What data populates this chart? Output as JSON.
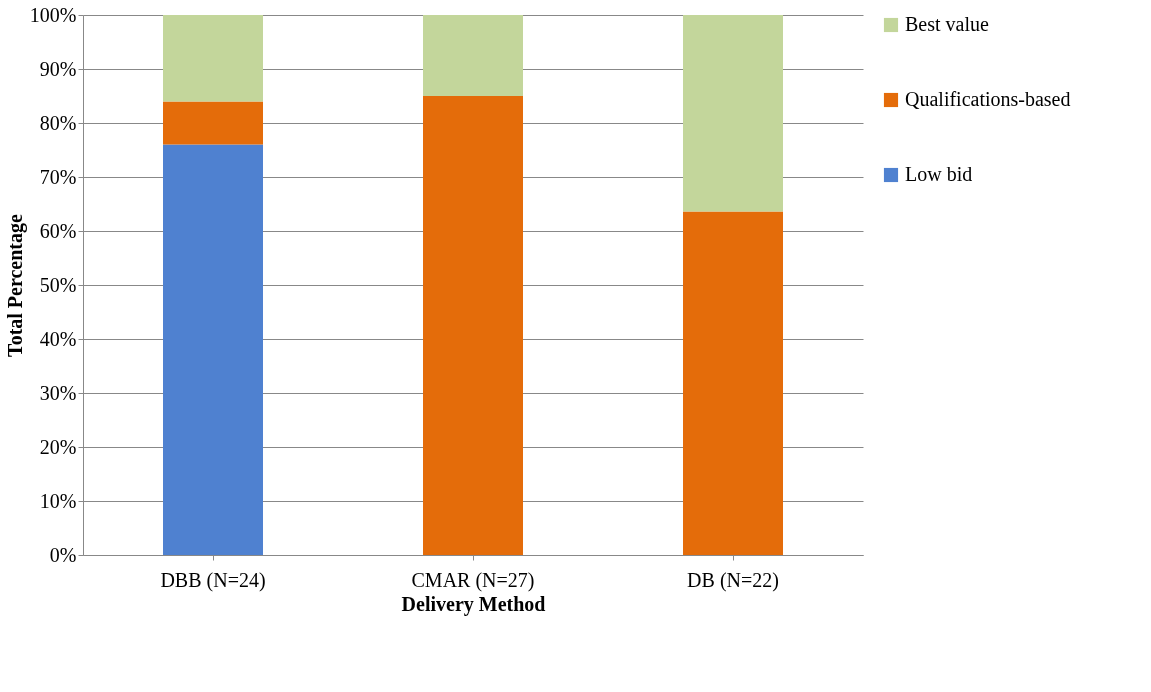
{
  "chart_data": {
    "type": "bar",
    "stacked": true,
    "xlabel": "Delivery Method",
    "ylabel": "Total Percentage",
    "categories": [
      "DBB (N=24)",
      "CMAR (N=27)",
      "DB (N=22)"
    ],
    "series": [
      {
        "name": "Low bid",
        "color": "#4f81d0",
        "values": [
          76,
          0,
          0
        ]
      },
      {
        "name": "Qualifications-based",
        "color": "#e46c0a",
        "values": [
          8,
          85,
          63.6
        ]
      },
      {
        "name": "Best value",
        "color": "#c3d69b",
        "values": [
          16,
          15,
          36.4
        ]
      }
    ],
    "ylim": [
      0,
      100
    ],
    "yticks": [
      {
        "value": 0,
        "label": "0%"
      },
      {
        "value": 10,
        "label": "10%"
      },
      {
        "value": 20,
        "label": "20%"
      },
      {
        "value": 30,
        "label": "30%"
      },
      {
        "value": 40,
        "label": "40%"
      },
      {
        "value": 50,
        "label": "50%"
      },
      {
        "value": 60,
        "label": "60%"
      },
      {
        "value": 70,
        "label": "70%"
      },
      {
        "value": 80,
        "label": "80%"
      },
      {
        "value": 90,
        "label": "90%"
      },
      {
        "value": 100,
        "label": "100%"
      }
    ],
    "grid": "y",
    "legend": "right"
  }
}
